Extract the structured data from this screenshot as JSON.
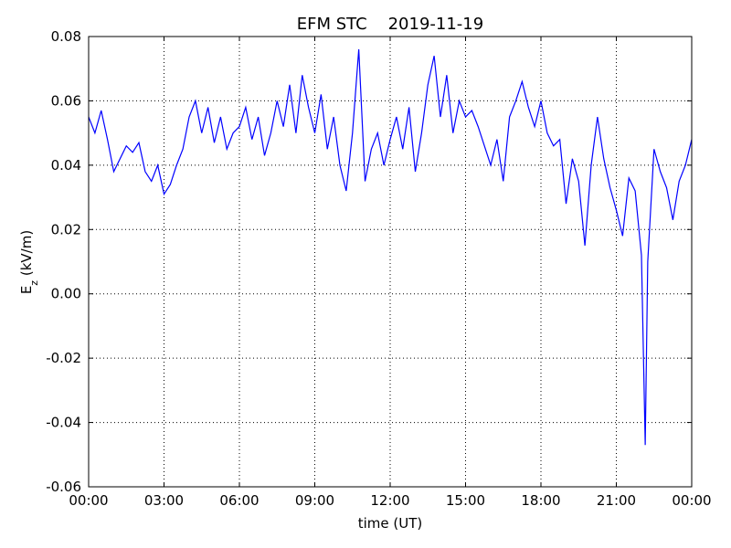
{
  "chart_data": {
    "type": "line",
    "title": "EFM STC    2019-11-19",
    "xlabel": "time (UT)",
    "ylabel": [
      "E",
      "z",
      " (kV/m)"
    ],
    "x": [
      0,
      0.25,
      0.5,
      0.75,
      1,
      1.25,
      1.5,
      1.75,
      2,
      2.25,
      2.5,
      2.75,
      3,
      3.25,
      3.5,
      3.75,
      4,
      4.25,
      4.5,
      4.75,
      5,
      5.25,
      5.5,
      5.75,
      6,
      6.25,
      6.5,
      6.75,
      7,
      7.25,
      7.5,
      7.75,
      8,
      8.25,
      8.5,
      8.75,
      9,
      9.25,
      9.5,
      9.75,
      10,
      10.25,
      10.5,
      10.75,
      11,
      11.25,
      11.5,
      11.75,
      12,
      12.25,
      12.5,
      12.75,
      13,
      13.25,
      13.5,
      13.75,
      14,
      14.25,
      14.5,
      14.75,
      15,
      15.25,
      15.5,
      15.75,
      16,
      16.25,
      16.5,
      16.75,
      17,
      17.25,
      17.5,
      17.75,
      18,
      18.25,
      18.5,
      18.75,
      19,
      19.25,
      19.5,
      19.75,
      20,
      20.25,
      20.5,
      20.75,
      21,
      21.25,
      21.5,
      21.75,
      22,
      22.15,
      22.25,
      22.5,
      22.75,
      23,
      23.25,
      23.5,
      23.75,
      24
    ],
    "series": [
      {
        "color": "#0000ff",
        "values": [
          0.055,
          0.05,
          0.057,
          0.048,
          0.038,
          0.042,
          0.046,
          0.044,
          0.047,
          0.038,
          0.035,
          0.04,
          0.031,
          0.034,
          0.04,
          0.045,
          0.055,
          0.06,
          0.05,
          0.058,
          0.047,
          0.055,
          0.045,
          0.05,
          0.052,
          0.058,
          0.048,
          0.055,
          0.043,
          0.05,
          0.06,
          0.052,
          0.065,
          0.05,
          0.068,
          0.058,
          0.05,
          0.062,
          0.045,
          0.055,
          0.04,
          0.032,
          0.05,
          0.076,
          0.035,
          0.045,
          0.05,
          0.04,
          0.048,
          0.055,
          0.045,
          0.058,
          0.038,
          0.05,
          0.065,
          0.074,
          0.055,
          0.068,
          0.05,
          0.06,
          0.055,
          0.057,
          0.052,
          0.046,
          0.04,
          0.048,
          0.035,
          0.055,
          0.06,
          0.066,
          0.058,
          0.052,
          0.06,
          0.05,
          0.046,
          0.048,
          0.028,
          0.042,
          0.035,
          0.015,
          0.04,
          0.055,
          0.042,
          0.033,
          0.026,
          0.018,
          0.036,
          0.032,
          0.012,
          -0.047,
          0.01,
          0.045,
          0.038,
          0.033,
          0.023,
          0.035,
          0.04,
          0.048
        ]
      }
    ],
    "xlim": [
      0,
      24
    ],
    "xticks": [
      {
        "value": 0,
        "label": "00:00"
      },
      {
        "value": 3,
        "label": "03:00"
      },
      {
        "value": 6,
        "label": "06:00"
      },
      {
        "value": 9,
        "label": "09:00"
      },
      {
        "value": 12,
        "label": "12:00"
      },
      {
        "value": 15,
        "label": "15:00"
      },
      {
        "value": 18,
        "label": "18:00"
      },
      {
        "value": 21,
        "label": "21:00"
      },
      {
        "value": 24,
        "label": "00:00"
      }
    ],
    "ylim": [
      -0.06,
      0.08
    ],
    "yticks": [
      -0.06,
      -0.04,
      -0.02,
      {
        "value": 0,
        "label": "0.00"
      },
      0.02,
      0.04,
      0.06,
      0.08
    ],
    "grid": true
  }
}
